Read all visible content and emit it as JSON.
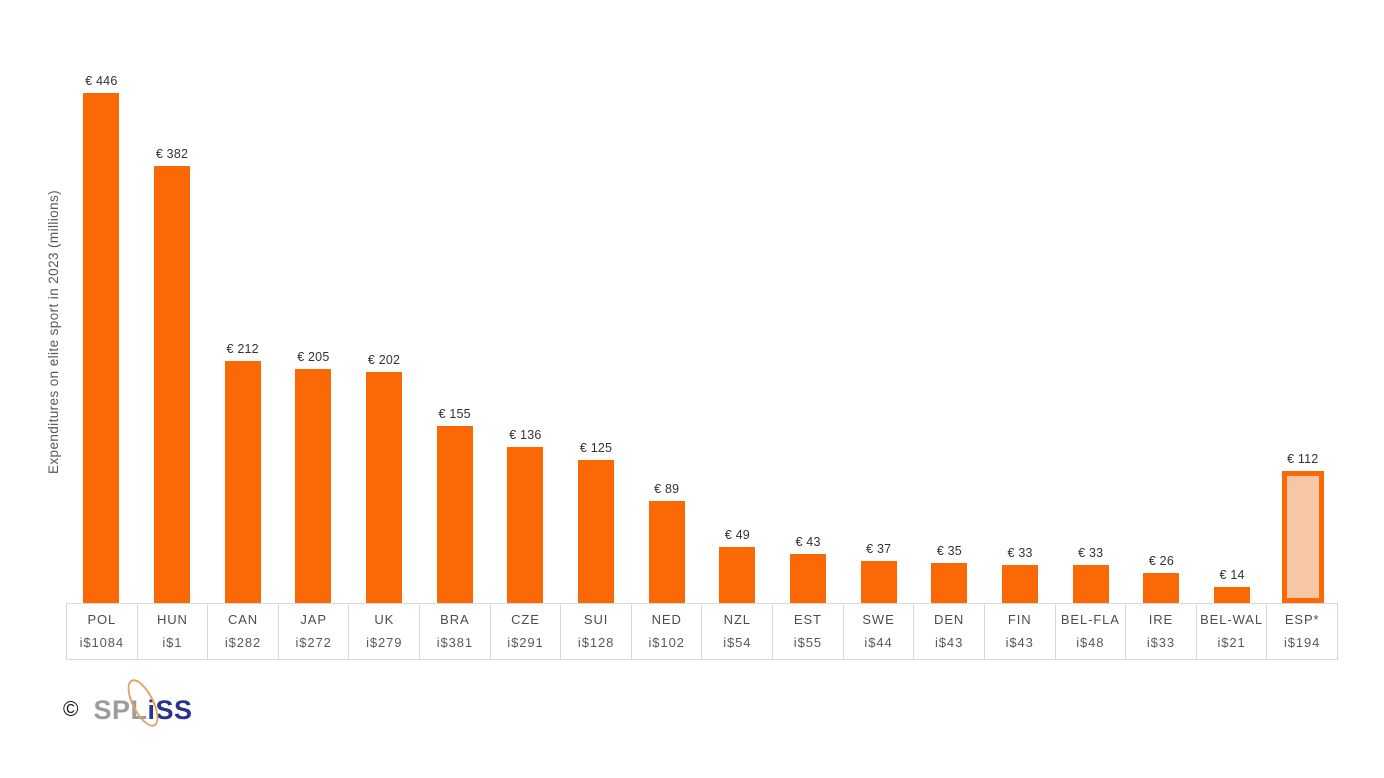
{
  "chart_data": {
    "type": "bar",
    "title": "",
    "ylabel": "Expenditures on elite sport in 2023 (millions)",
    "xlabel": "",
    "categories": [
      "POL",
      "HUN",
      "CAN",
      "JAP",
      "UK",
      "BRA",
      "CZE",
      "SUI",
      "NED",
      "NZL",
      "EST",
      "SWE",
      "DEN",
      "FIN",
      "BEL-FLA",
      "IRE",
      "BEL-WAL",
      "ESP*"
    ],
    "values": [
      446,
      382,
      212,
      205,
      202,
      155,
      136,
      125,
      89,
      49,
      43,
      37,
      35,
      33,
      33,
      26,
      14,
      112
    ],
    "bar_value_labels": [
      "€ 446",
      "€ 382",
      "€ 212",
      "€ 205",
      "€ 202",
      "€ 155",
      "€ 136",
      "€ 125",
      "€ 89",
      "€ 49",
      "€ 43",
      "€ 37",
      "€ 35",
      "€ 33",
      "€ 33",
      "€ 26",
      "€ 14",
      "€ 112"
    ],
    "secondary_row_labels": [
      "i$1084",
      "i$1",
      "i$282",
      "i$272",
      "i$279",
      "i$381",
      "i$291",
      "i$128",
      "i$102",
      "i$54",
      "i$55",
      "i$44",
      "i$43",
      "i$43",
      "i$48",
      "i$33",
      "i$21",
      "i$194"
    ],
    "highlight_index": 17,
    "ylim": [
      0,
      446
    ],
    "grid": false,
    "legend": "none"
  },
  "colors": {
    "bar": "#fa6905",
    "highlight_fill": "#f6c6a5",
    "highlight_border": "#fa6905",
    "table_border": "#d9d9d9",
    "axis_text": "#595959",
    "value_label_text": "#333333",
    "logo_gray": "#9c9c9c",
    "logo_blue": "#27348b",
    "logo_orbit": "#e2a368"
  },
  "footer": {
    "copyright_symbol": "©",
    "logo_part_gray": "SPL",
    "logo_part_blue": "iSS"
  }
}
